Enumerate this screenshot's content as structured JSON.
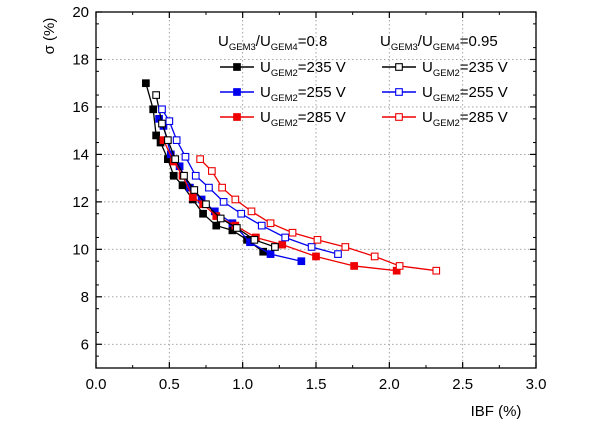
{
  "chart_data": {
    "type": "line",
    "xlabel": "IBF (%)",
    "ylabel": "σ (%)",
    "xlim": [
      0.0,
      3.0
    ],
    "ylim": [
      5,
      20
    ],
    "xticks": [
      "0.0",
      "0.5",
      "1.0",
      "1.5",
      "2.0",
      "2.5",
      "3.0"
    ],
    "yticks": [
      "6",
      "8",
      "10",
      "12",
      "14",
      "16",
      "18",
      "20"
    ],
    "grid": true,
    "legend_position": "top-right",
    "legend_groups": [
      {
        "prefix": "U",
        "sub1": "GEM3",
        "mid": "/U",
        "sub2": "GEM4",
        "suffix": "=0.8"
      },
      {
        "prefix": "U",
        "sub1": "GEM3",
        "mid": "/U",
        "sub2": "GEM4",
        "suffix": "=0.95"
      }
    ],
    "series": [
      {
        "legend": {
          "prefix": "U",
          "sub": "GEM2",
          "suffix": "=235 V"
        },
        "color": "#000000",
        "marker": "filled",
        "x": [
          0.34,
          0.39,
          0.41,
          0.44,
          0.49,
          0.53,
          0.59,
          0.66,
          0.73,
          0.82,
          0.93,
          1.03,
          1.14
        ],
        "y": [
          17.0,
          15.9,
          14.8,
          14.5,
          13.8,
          13.1,
          12.7,
          12.1,
          11.5,
          11.0,
          10.8,
          10.4,
          9.9
        ]
      },
      {
        "legend": {
          "prefix": "U",
          "sub": "GEM2",
          "suffix": "=255 V"
        },
        "color": "#0000ee",
        "marker": "filled",
        "x": [
          0.43,
          0.46,
          0.51,
          0.57,
          0.64,
          0.72,
          0.81,
          0.93,
          1.05,
          1.19,
          1.4
        ],
        "y": [
          15.5,
          15.2,
          14.0,
          13.5,
          12.6,
          12.1,
          11.6,
          11.1,
          10.3,
          9.8,
          9.5
        ]
      },
      {
        "legend": {
          "prefix": "U",
          "sub": "GEM2",
          "suffix": "=285 V"
        },
        "color": "#ee0000",
        "marker": "filled",
        "x": [
          0.46,
          0.53,
          0.59,
          0.66,
          0.73,
          0.82,
          0.95,
          1.09,
          1.27,
          1.5,
          1.76,
          2.05
        ],
        "y": [
          14.6,
          13.7,
          13.1,
          12.2,
          11.9,
          11.4,
          11.0,
          10.5,
          10.2,
          9.7,
          9.3,
          9.1
        ]
      },
      {
        "legend": {
          "prefix": "U",
          "sub": "GEM2",
          "suffix": "=235 V"
        },
        "color": "#000000",
        "marker": "open",
        "x": [
          0.41,
          0.45,
          0.49,
          0.54,
          0.6,
          0.67,
          0.75,
          0.85,
          0.96,
          1.08,
          1.22
        ],
        "y": [
          16.5,
          15.3,
          14.6,
          13.8,
          13.1,
          12.5,
          11.9,
          11.3,
          10.9,
          10.4,
          10.1
        ]
      },
      {
        "legend": {
          "prefix": "U",
          "sub": "GEM2",
          "suffix": "=255 V"
        },
        "color": "#0000ee",
        "marker": "open",
        "x": [
          0.45,
          0.5,
          0.55,
          0.61,
          0.68,
          0.77,
          0.87,
          0.99,
          1.13,
          1.29,
          1.47,
          1.65
        ],
        "y": [
          15.9,
          15.4,
          14.6,
          13.9,
          13.1,
          12.6,
          12.0,
          11.5,
          11.0,
          10.5,
          10.1,
          9.8
        ]
      },
      {
        "legend": {
          "prefix": "U",
          "sub": "GEM2",
          "suffix": "=285 V"
        },
        "color": "#ee0000",
        "marker": "open",
        "x": [
          0.71,
          0.79,
          0.86,
          0.95,
          1.06,
          1.19,
          1.34,
          1.51,
          1.7,
          1.9,
          2.07,
          2.32
        ],
        "y": [
          13.8,
          13.3,
          12.6,
          12.1,
          11.6,
          11.1,
          10.7,
          10.4,
          10.1,
          9.7,
          9.3,
          9.1
        ]
      }
    ]
  }
}
